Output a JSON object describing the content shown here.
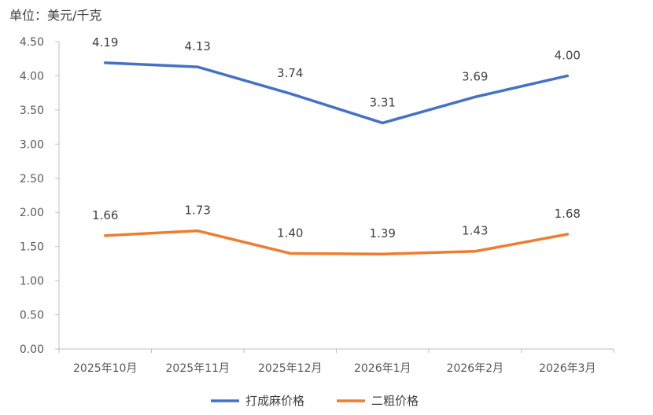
{
  "chart_data": {
    "type": "line",
    "title": "",
    "ylabel": "单位：美元/千克",
    "xlabel": "",
    "categories": [
      "2025年10月",
      "2025年11月",
      "2025年12月",
      "2026年1月",
      "2026年2月",
      "2026年3月"
    ],
    "ylim": [
      0,
      4.5
    ],
    "yticks": [
      "0.00",
      "0.50",
      "1.00",
      "1.50",
      "2.00",
      "2.50",
      "3.00",
      "3.50",
      "4.00",
      "4.50"
    ],
    "grid": false,
    "legend_position": "bottom-center",
    "series": [
      {
        "name": "打成麻价格",
        "color": "#4472c4",
        "values": [
          4.19,
          4.13,
          3.74,
          3.31,
          3.69,
          4.0
        ],
        "labels": [
          "4.19",
          "4.13",
          "3.74",
          "3.31",
          "3.69",
          "4.00"
        ]
      },
      {
        "name": "二粗价格",
        "color": "#ed7d31",
        "values": [
          1.66,
          1.73,
          1.4,
          1.39,
          1.43,
          1.68
        ],
        "labels": [
          "1.66",
          "1.73",
          "1.40",
          "1.39",
          "1.43",
          "1.68"
        ]
      }
    ]
  }
}
